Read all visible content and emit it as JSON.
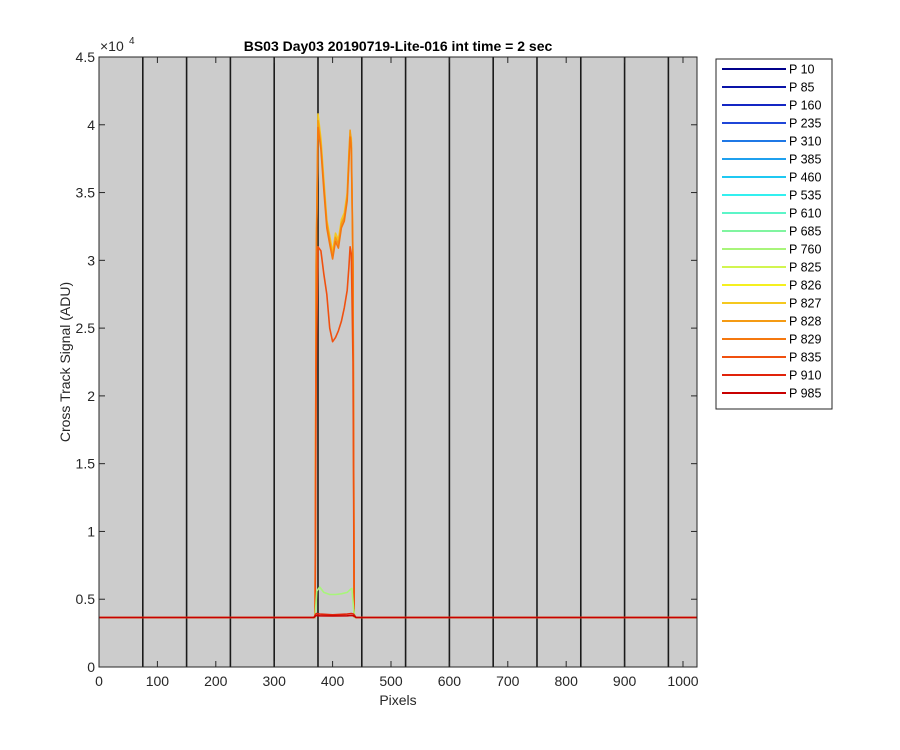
{
  "chart_data": {
    "type": "line",
    "title": "BS03 Day03 20190719-Lite-016 int time = 2 sec",
    "xlabel": "Pixels",
    "ylabel": "Cross Track Signal (ADU)",
    "xlim": [
      0,
      1024
    ],
    "ylim": [
      0,
      45000
    ],
    "y_exponent_label": "×10",
    "y_exponent_power": "4",
    "x_ticks": [
      0,
      100,
      200,
      300,
      400,
      500,
      600,
      700,
      800,
      900,
      1000
    ],
    "x_tick_labels": [
      "0",
      "100",
      "200",
      "300",
      "400",
      "500",
      "600",
      "700",
      "800",
      "900",
      "1000"
    ],
    "y_ticks": [
      0,
      5000,
      10000,
      15000,
      20000,
      25000,
      30000,
      35000,
      40000,
      45000
    ],
    "y_tick_labels": [
      "0",
      "0.5",
      "1",
      "1.5",
      "2",
      "2.5",
      "3",
      "3.5",
      "4",
      "4.5"
    ],
    "grid": false,
    "background": "#cccccc",
    "vertical_bands": [
      75,
      150,
      225,
      300,
      375,
      450,
      525,
      600,
      675,
      750,
      825,
      900,
      975
    ],
    "legend_position": "outside-right",
    "legend": [
      {
        "name": "P 10",
        "color": "#00008b"
      },
      {
        "name": "P 85",
        "color": "#0a14a8"
      },
      {
        "name": "P 160",
        "color": "#1426c4"
      },
      {
        "name": "P 235",
        "color": "#1f46d8"
      },
      {
        "name": "P 310",
        "color": "#1f78e6"
      },
      {
        "name": "P 385",
        "color": "#1fa0ee"
      },
      {
        "name": "P 460",
        "color": "#1fc8f2"
      },
      {
        "name": "P 535",
        "color": "#33f0f0"
      },
      {
        "name": "P 610",
        "color": "#5cf5c8"
      },
      {
        "name": "P 685",
        "color": "#80f5a0"
      },
      {
        "name": "P 760",
        "color": "#a8f57a"
      },
      {
        "name": "P 825",
        "color": "#d2f550"
      },
      {
        "name": "P 826",
        "color": "#f5f01f"
      },
      {
        "name": "P 827",
        "color": "#f5c81f"
      },
      {
        "name": "P 828",
        "color": "#f59b14"
      },
      {
        "name": "P 829",
        "color": "#f5780f"
      },
      {
        "name": "P 835",
        "color": "#f0500f"
      },
      {
        "name": "P 910",
        "color": "#e1230a"
      },
      {
        "name": "P 985",
        "color": "#c80000"
      }
    ],
    "series": [
      {
        "name": "P 827",
        "color": "#f5c81f",
        "x": [
          0,
          370,
          372,
          375,
          380,
          385,
          390,
          395,
          400,
          405,
          410,
          415,
          420,
          425,
          428,
          430,
          432,
          435,
          437,
          440,
          1024
        ],
        "y": [
          3650,
          3650,
          30000,
          40800,
          39000,
          36000,
          33000,
          31800,
          30600,
          32000,
          31500,
          33000,
          33500,
          35000,
          38000,
          39400,
          39000,
          30000,
          3700,
          3650,
          3650
        ]
      },
      {
        "name": "P 828",
        "color": "#f59b14",
        "x": [
          0,
          370,
          372,
          375,
          380,
          385,
          390,
          395,
          400,
          405,
          410,
          415,
          420,
          425,
          428,
          430,
          432,
          435,
          437,
          440,
          1024
        ],
        "y": [
          3650,
          3650,
          30000,
          40300,
          38500,
          35600,
          32800,
          31500,
          30300,
          31700,
          31200,
          32700,
          33200,
          34700,
          37600,
          39600,
          38700,
          29800,
          3700,
          3650,
          3650
        ]
      },
      {
        "name": "P 829",
        "color": "#f5780f",
        "x": [
          0,
          370,
          372,
          375,
          380,
          385,
          390,
          395,
          400,
          405,
          410,
          415,
          420,
          425,
          428,
          430,
          432,
          435,
          437,
          440,
          1024
        ],
        "y": [
          3650,
          3650,
          29500,
          39800,
          38200,
          35200,
          32400,
          31200,
          30100,
          31400,
          30900,
          32400,
          32900,
          34400,
          37200,
          39100,
          38300,
          29500,
          3700,
          3650,
          3650
        ]
      },
      {
        "name": "P 835",
        "color": "#f0500f",
        "x": [
          0,
          370,
          372,
          375,
          380,
          385,
          390,
          395,
          400,
          405,
          410,
          415,
          420,
          425,
          428,
          430,
          432,
          435,
          437,
          440,
          1024
        ],
        "y": [
          3650,
          3650,
          22000,
          31000,
          30700,
          29000,
          27500,
          25000,
          24000,
          24300,
          24800,
          25500,
          26500,
          27800,
          29500,
          31000,
          30500,
          22500,
          3700,
          3650,
          3650
        ]
      },
      {
        "name": "P 760",
        "color": "#a8f57a",
        "x": [
          0,
          370,
          373,
          378,
          385,
          395,
          405,
          415,
          425,
          430,
          433,
          436,
          438,
          1024
        ],
        "y": [
          3650,
          3650,
          5600,
          5900,
          5500,
          5350,
          5350,
          5400,
          5500,
          5700,
          5800,
          4300,
          3650,
          3650
        ]
      },
      {
        "name": "P 910",
        "color": "#e1230a",
        "x": [
          0,
          368,
          372,
          378,
          400,
          425,
          432,
          436,
          440,
          1024
        ],
        "y": [
          3650,
          3650,
          3950,
          3900,
          3850,
          3900,
          3950,
          3900,
          3650,
          3650
        ]
      },
      {
        "name": "P 985",
        "color": "#c80000",
        "x": [
          0,
          368,
          372,
          378,
          400,
          425,
          432,
          436,
          440,
          1024
        ],
        "y": [
          3650,
          3650,
          3800,
          3780,
          3760,
          3780,
          3800,
          3780,
          3650,
          3650
        ]
      }
    ]
  }
}
